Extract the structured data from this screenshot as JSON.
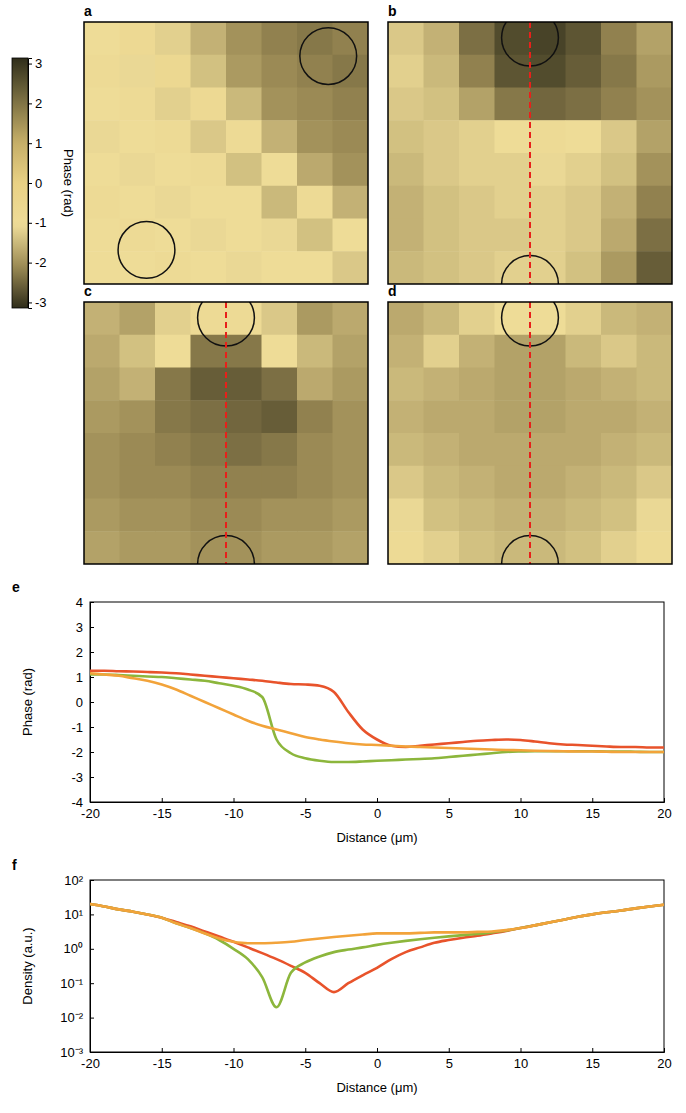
{
  "chart_data": [
    {
      "type": "heatmap",
      "colorbar_label": "Phase (rad)",
      "colorbar_range": [
        -3.14,
        3.14
      ],
      "colorbar_ticks": [
        -3,
        -2,
        -1,
        0,
        1,
        2,
        3
      ],
      "panels": [
        {
          "title": "a",
          "cells": [
            [
              -1.0,
              -0.8,
              -1.2,
              -1.6,
              -2.0,
              -2.2,
              -2.3,
              -2.2
            ],
            [
              -0.9,
              -1.1,
              -0.7,
              -1.4,
              -1.9,
              -2.1,
              -2.2,
              -2.3
            ],
            [
              -1.0,
              -0.9,
              -1.2,
              -0.8,
              -1.5,
              -2.0,
              -2.1,
              -2.2
            ],
            [
              -1.1,
              -1.0,
              -0.9,
              -1.3,
              -0.9,
              -1.6,
              -2.0,
              -2.1
            ],
            [
              -1.0,
              -1.1,
              -1.0,
              -0.9,
              -1.4,
              -1.0,
              -1.7,
              -2.0
            ],
            [
              -0.9,
              -1.0,
              -1.1,
              -1.0,
              -1.0,
              -1.5,
              -0.9,
              -1.6
            ],
            [
              -1.0,
              -0.9,
              -1.0,
              -1.1,
              -1.0,
              -1.1,
              -1.4,
              -1.0
            ],
            [
              -1.0,
              -1.0,
              -0.9,
              -1.0,
              -1.1,
              -1.0,
              -1.0,
              -1.3
            ]
          ]
        },
        {
          "title": "b",
          "cells": [
            [
              -1.3,
              -1.6,
              -2.4,
              -2.8,
              -2.9,
              -2.7,
              -2.2,
              -1.8
            ],
            [
              -1.2,
              -1.5,
              -2.2,
              -2.7,
              -2.8,
              -2.6,
              -2.3,
              -1.9
            ],
            [
              -1.3,
              -1.4,
              -1.8,
              -2.3,
              -2.5,
              -2.4,
              -2.2,
              -2.0
            ],
            [
              -1.4,
              -1.3,
              -1.2,
              -1.0,
              -0.9,
              -1.0,
              -1.3,
              -1.8
            ],
            [
              -1.5,
              -1.3,
              -1.2,
              -1.2,
              -1.1,
              -1.2,
              -1.4,
              -2.0
            ],
            [
              -1.6,
              -1.4,
              -1.3,
              -1.2,
              -1.2,
              -1.3,
              -1.6,
              -2.2
            ],
            [
              -1.6,
              -1.4,
              -1.3,
              -1.3,
              -1.2,
              -1.3,
              -1.7,
              -2.4
            ],
            [
              -1.5,
              -1.4,
              -1.3,
              -1.2,
              -1.2,
              -1.4,
              -1.9,
              -2.6
            ]
          ]
        },
        {
          "title": "c",
          "cells": [
            [
              -1.6,
              -1.8,
              -1.2,
              -0.9,
              -0.9,
              -1.3,
              -1.9,
              -1.7
            ],
            [
              -1.7,
              -1.4,
              -1.0,
              -2.3,
              -2.3,
              -1.0,
              -1.5,
              -1.8
            ],
            [
              -1.8,
              -1.6,
              -2.3,
              -2.6,
              -2.6,
              -2.4,
              -1.7,
              -1.9
            ],
            [
              -1.9,
              -2.0,
              -2.3,
              -2.4,
              -2.5,
              -2.6,
              -2.2,
              -2.0
            ],
            [
              -2.0,
              -2.1,
              -2.2,
              -2.3,
              -2.4,
              -2.3,
              -2.1,
              -2.0
            ],
            [
              -2.0,
              -2.1,
              -2.1,
              -2.2,
              -2.2,
              -2.2,
              -2.1,
              -2.0
            ],
            [
              -1.9,
              -2.0,
              -2.0,
              -2.1,
              -2.1,
              -2.0,
              -2.0,
              -1.9
            ],
            [
              -1.8,
              -1.9,
              -1.9,
              -2.0,
              -2.0,
              -1.9,
              -1.9,
              -1.8
            ]
          ]
        },
        {
          "title": "d",
          "cells": [
            [
              -1.7,
              -1.5,
              -1.2,
              -1.0,
              -1.0,
              -1.2,
              -1.5,
              -1.6
            ],
            [
              -1.6,
              -1.2,
              -1.6,
              -1.8,
              -1.8,
              -1.5,
              -1.3,
              -1.5
            ],
            [
              -1.5,
              -1.6,
              -1.7,
              -1.8,
              -1.8,
              -1.7,
              -1.6,
              -1.5
            ],
            [
              -1.6,
              -1.7,
              -1.7,
              -1.8,
              -1.8,
              -1.7,
              -1.7,
              -1.6
            ],
            [
              -1.5,
              -1.6,
              -1.7,
              -1.7,
              -1.7,
              -1.7,
              -1.6,
              -1.5
            ],
            [
              -1.3,
              -1.5,
              -1.6,
              -1.7,
              -1.7,
              -1.6,
              -1.5,
              -1.3
            ],
            [
              -1.1,
              -1.4,
              -1.5,
              -1.6,
              -1.6,
              -1.5,
              -1.4,
              -1.1
            ],
            [
              -0.9,
              -1.2,
              -1.4,
              -1.5,
              -1.5,
              -1.4,
              -1.2,
              -0.9
            ]
          ]
        }
      ]
    },
    {
      "type": "line",
      "title": "e",
      "xlabel": "Distance (μm)",
      "ylabel": "Phase (rad)",
      "x": [
        -20,
        -19,
        -18,
        -17,
        -16,
        -15,
        -14,
        -13,
        -12,
        -11,
        -10,
        -9,
        -8,
        -7,
        -6,
        -5,
        -4,
        -3,
        -2,
        -1,
        0,
        1,
        2,
        3,
        4,
        5,
        6,
        7,
        8,
        9,
        10,
        11,
        12,
        13,
        14,
        15,
        16,
        17,
        18,
        19,
        20
      ],
      "xlim": [
        -20,
        20
      ],
      "xticks": [
        -20,
        -15,
        -10,
        -5,
        0,
        5,
        10,
        15,
        20
      ],
      "ylim": [
        -4,
        4
      ],
      "yticks": [
        -4,
        -3,
        -2,
        -1,
        0,
        1,
        2,
        3,
        4
      ],
      "series": [
        {
          "color": "#e8532b",
          "values": [
            1.25,
            1.25,
            1.23,
            1.22,
            1.2,
            1.18,
            1.15,
            1.1,
            1.05,
            1.0,
            0.95,
            0.9,
            0.85,
            0.78,
            0.72,
            0.7,
            0.65,
            0.4,
            -0.4,
            -1.1,
            -1.5,
            -1.75,
            -1.8,
            -1.75,
            -1.7,
            -1.65,
            -1.6,
            -1.55,
            -1.52,
            -1.5,
            -1.52,
            -1.58,
            -1.65,
            -1.7,
            -1.72,
            -1.75,
            -1.78,
            -1.8,
            -1.8,
            -1.82,
            -1.82
          ]
        },
        {
          "color": "#8cb63c",
          "values": [
            1.1,
            1.1,
            1.08,
            1.05,
            1.02,
            1.0,
            0.95,
            0.9,
            0.85,
            0.75,
            0.65,
            0.5,
            0.2,
            -1.5,
            -2.05,
            -2.25,
            -2.35,
            -2.4,
            -2.4,
            -2.38,
            -2.35,
            -2.33,
            -2.3,
            -2.28,
            -2.25,
            -2.2,
            -2.15,
            -2.1,
            -2.05,
            -2.0,
            -1.98,
            -1.97,
            -1.97,
            -1.97,
            -1.97,
            -1.97,
            -1.98,
            -1.98,
            -1.99,
            -2.0,
            -2.0
          ]
        },
        {
          "color": "#f2a33a",
          "values": [
            1.15,
            1.1,
            1.05,
            0.95,
            0.85,
            0.7,
            0.5,
            0.25,
            0.0,
            -0.25,
            -0.5,
            -0.75,
            -0.95,
            -1.1,
            -1.25,
            -1.4,
            -1.5,
            -1.58,
            -1.65,
            -1.7,
            -1.72,
            -1.75,
            -1.78,
            -1.8,
            -1.82,
            -1.84,
            -1.86,
            -1.88,
            -1.9,
            -1.92,
            -1.93,
            -1.95,
            -1.96,
            -1.97,
            -1.98,
            -1.98,
            -1.99,
            -2.0,
            -2.0,
            -2.0,
            -2.0
          ]
        }
      ]
    },
    {
      "type": "line",
      "title": "f",
      "log": "y",
      "xlabel": "Distance (μm)",
      "ylabel": "Density (a.u.)",
      "x": [
        -20,
        -19,
        -18,
        -17,
        -16,
        -15,
        -14,
        -13,
        -12,
        -11,
        -10,
        -9,
        -8,
        -7,
        -6,
        -5,
        -4,
        -3,
        -2,
        -1,
        0,
        1,
        2,
        3,
        4,
        5,
        6,
        7,
        8,
        9,
        10,
        11,
        12,
        13,
        14,
        15,
        16,
        17,
        18,
        19,
        20
      ],
      "xlim": [
        -20,
        20
      ],
      "xticks": [
        -20,
        -15,
        -10,
        -5,
        0,
        5,
        10,
        15,
        20
      ],
      "ylim": [
        0.001,
        100
      ],
      "yticks": [
        {
          "value": 0.001,
          "label": "10⁻³"
        },
        {
          "value": 0.01,
          "label": "10⁻²"
        },
        {
          "value": 0.1,
          "label": "10⁻¹"
        },
        {
          "value": 1,
          "label": "10⁰"
        },
        {
          "value": 10,
          "label": "10¹"
        },
        {
          "value": 100,
          "label": "10²"
        }
      ],
      "series": [
        {
          "color": "#e8532b",
          "values": [
            20,
            17,
            14,
            12,
            10,
            8,
            6,
            4.5,
            3.2,
            2.3,
            1.6,
            1.1,
            0.75,
            0.5,
            0.32,
            0.2,
            0.1,
            0.055,
            0.1,
            0.17,
            0.28,
            0.5,
            0.8,
            1.1,
            1.5,
            1.8,
            2.1,
            2.4,
            2.8,
            3.3,
            4,
            4.8,
            5.8,
            7,
            8.5,
            10,
            11.5,
            13,
            15,
            17,
            19
          ]
        },
        {
          "color": "#8cb63c",
          "values": [
            20,
            17,
            14,
            12,
            10,
            8,
            5.5,
            4,
            2.8,
            1.8,
            1.0,
            0.5,
            0.15,
            0.02,
            0.2,
            0.4,
            0.6,
            0.8,
            0.95,
            1.1,
            1.3,
            1.5,
            1.7,
            1.9,
            2.1,
            2.3,
            2.5,
            2.7,
            3.0,
            3.4,
            4,
            4.8,
            5.8,
            7,
            8.5,
            10,
            11.5,
            13,
            15,
            17,
            19
          ]
        },
        {
          "color": "#f2a33a",
          "values": [
            20,
            17,
            14,
            12,
            10,
            8,
            5.5,
            4,
            2.8,
            2.0,
            1.6,
            1.45,
            1.45,
            1.5,
            1.6,
            1.8,
            2.0,
            2.2,
            2.4,
            2.6,
            2.8,
            2.8,
            2.8,
            2.9,
            3.0,
            3.0,
            3.0,
            3.1,
            3.2,
            3.5,
            4,
            4.8,
            5.8,
            7,
            8.5,
            10,
            11.5,
            13,
            15,
            17,
            19
          ]
        }
      ]
    }
  ]
}
